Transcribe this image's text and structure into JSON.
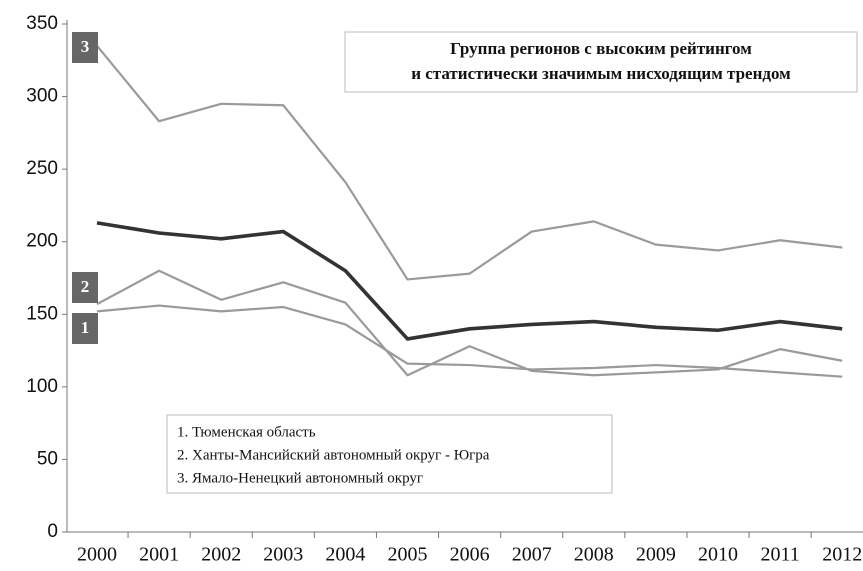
{
  "chart_data": {
    "type": "line",
    "title_lines": [
      "Группа регионов с высоким рейтингом",
      "и статистически значимым нисходящим трендом"
    ],
    "categories": [
      "2000",
      "2001",
      "2002",
      "2003",
      "2004",
      "2005",
      "2006",
      "2007",
      "2008",
      "2009",
      "2010",
      "2011",
      "2012"
    ],
    "series": [
      {
        "name": "1. Тюменская область",
        "color": "#9a9a9a",
        "values": [
          152,
          156,
          152,
          155,
          143,
          116,
          115,
          112,
          113,
          115,
          113,
          110,
          107
        ]
      },
      {
        "name": "2. Ханты-Мансийский автономный округ - Югра",
        "color": "#9a9a9a",
        "values": [
          157,
          180,
          160,
          172,
          158,
          108,
          128,
          111,
          108,
          110,
          112,
          126,
          118
        ]
      },
      {
        "name": "3. Ямало-Ненецкий автономный округ",
        "color": "#9a9a9a",
        "values": [
          335,
          283,
          295,
          294,
          241,
          174,
          178,
          207,
          214,
          198,
          194,
          201,
          196
        ]
      },
      {
        "color": "#333333",
        "values": [
          213,
          206,
          202,
          207,
          180,
          133,
          140,
          143,
          145,
          141,
          139,
          145,
          140
        ]
      }
    ],
    "annotations": [
      "1",
      "2",
      "3"
    ],
    "ylim": [
      0,
      350
    ],
    "yticks": [
      0,
      50,
      100,
      150,
      200,
      250,
      300,
      350
    ],
    "grid": false
  }
}
